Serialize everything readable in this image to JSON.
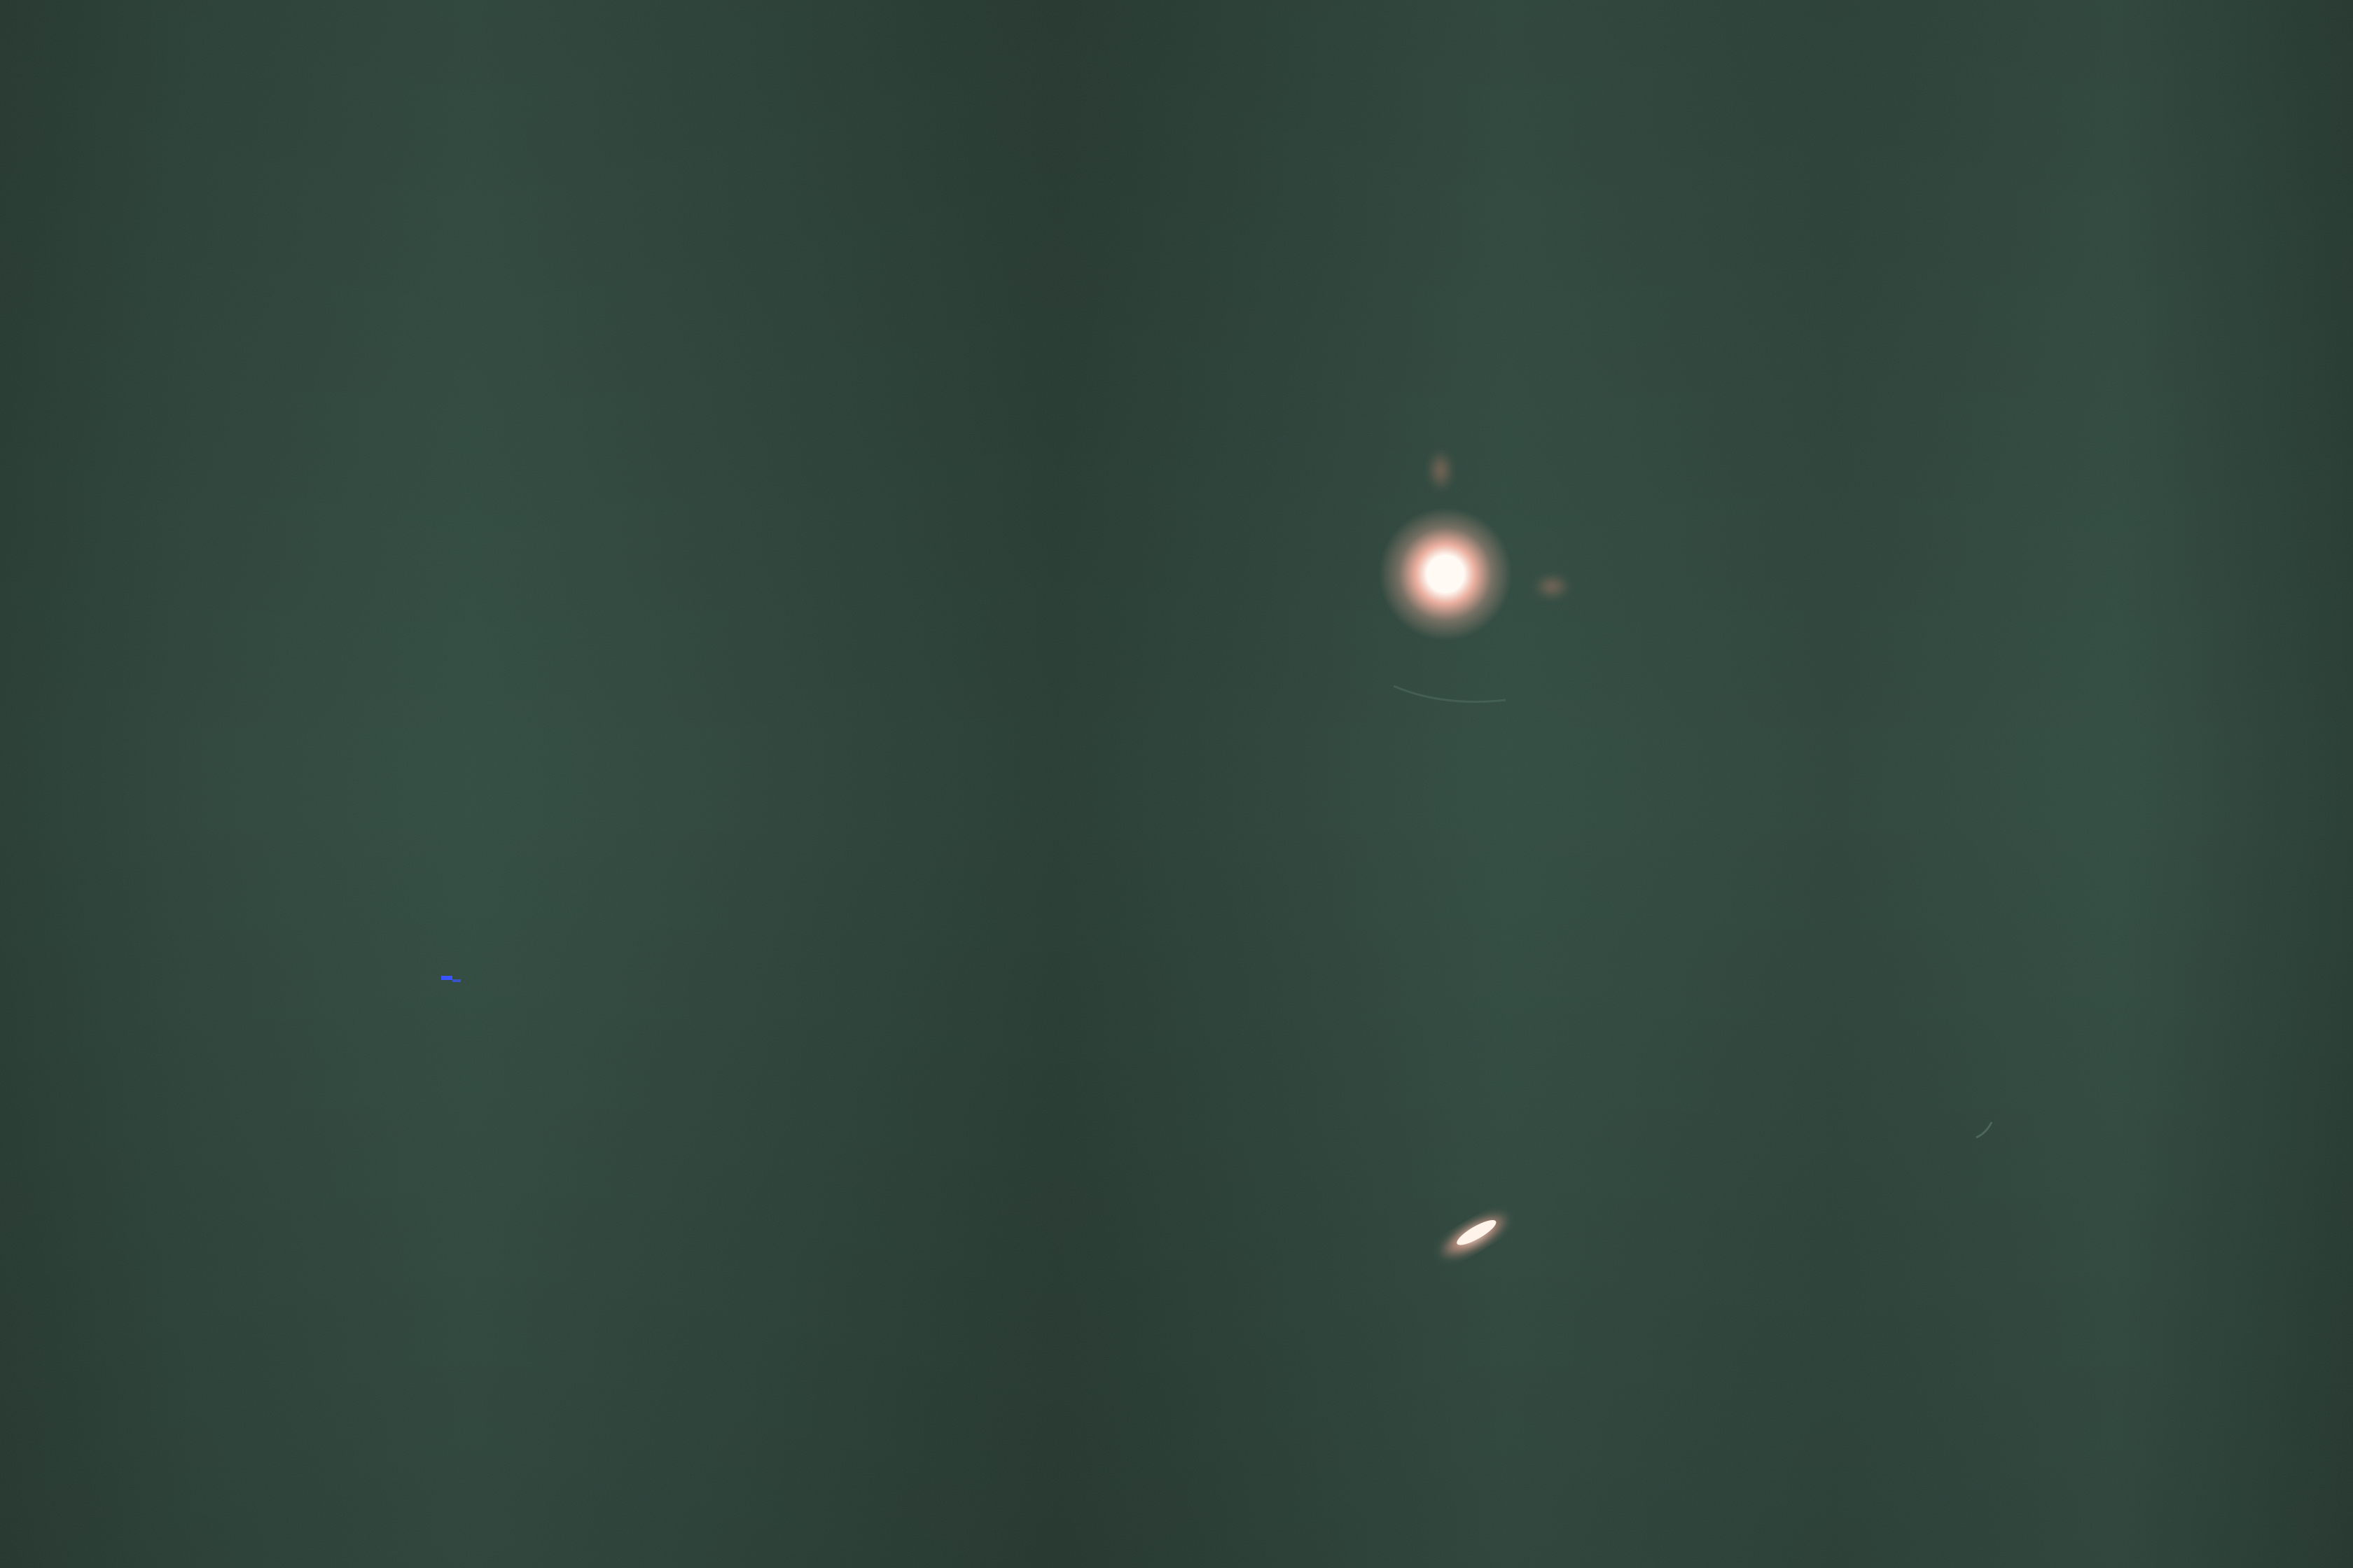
{
  "scene": {
    "subject": "night-sky-photograph",
    "colors": {
      "sky_base": "#2b4339",
      "sky_dark": "#253a31",
      "sky_light": "#2f4a3f",
      "glow_core": "#fffaf4",
      "glow_halo": "#f3b3a3",
      "flare": "#c98570",
      "streak_core": "#fff3ea",
      "streak_edge": "#e3a08f",
      "blue_speck": "#3a55ff"
    }
  }
}
